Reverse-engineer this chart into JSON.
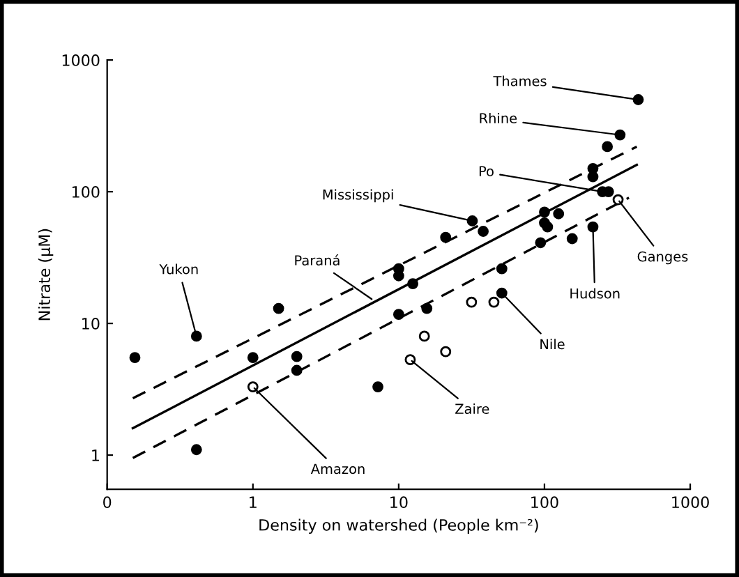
{
  "chart_data": {
    "type": "scatter",
    "xlabel": "Density on watershed (People km⁻²)",
    "ylabel": "Nitrate (μM)",
    "log": "xy",
    "xlim": [
      0.1,
      1000
    ],
    "ylim": [
      0.55,
      1000
    ],
    "xticks": [
      {
        "value": 0.1,
        "label": "0"
      },
      1,
      10,
      100,
      1000
    ],
    "yticks": [
      1,
      10,
      100,
      1000
    ],
    "grid": false,
    "legend": false,
    "marker": "circle",
    "series": [
      {
        "color": "#000000",
        "x": [
          0.155,
          0.41,
          0.41,
          1.5,
          1,
          2,
          2,
          7.2,
          10,
          10,
          12.5,
          21,
          32,
          38,
          10,
          15.6,
          51,
          51,
          94,
          440,
          330,
          270,
          215,
          215,
          250,
          275,
          215,
          155,
          100,
          100,
          105,
          125
        ],
        "values": [
          5.5,
          8,
          1.1,
          13,
          5.5,
          5.6,
          4.4,
          3.3,
          26,
          23,
          20,
          45,
          60,
          50,
          11.7,
          13,
          26,
          17,
          41,
          500,
          270,
          220,
          150,
          130,
          100,
          100,
          54,
          44,
          70,
          58,
          54,
          68
        ]
      },
      {
        "color": "#ffffff",
        "x": [
          1,
          31.6,
          45,
          15,
          21,
          12,
          320
        ],
        "values": [
          3.3,
          14.5,
          14.5,
          8,
          6.1,
          5.3,
          87
        ]
      },
      {
        "type": "line",
        "color": "#000000",
        "line_style": "solid",
        "marker": "none",
        "x": [
          0.15,
          430
        ],
        "values": [
          1.6,
          160
        ]
      },
      {
        "type": "line",
        "color": "#000000",
        "line_style": "dashed",
        "marker": "none",
        "x": [
          0.15,
          430
        ],
        "values": [
          2.7,
          220
        ]
      },
      {
        "type": "line",
        "color": "#000000",
        "line_style": "dashed",
        "marker": "none",
        "x": [
          0.15,
          380
        ],
        "values": [
          0.95,
          90
        ]
      }
    ],
    "annotations": [
      {
        "text": "Yukon",
        "x": 0.41,
        "y": 8
      },
      {
        "text": "Paraná",
        "x": 6.7,
        "y": 15
      },
      {
        "text": "Amazon",
        "x": 1,
        "y": 3.3
      },
      {
        "text": "Mississippi",
        "x": 32,
        "y": 60
      },
      {
        "text": "Zaire",
        "x": 12,
        "y": 5.3
      },
      {
        "text": "Nile",
        "x": 51,
        "y": 17
      },
      {
        "text": "Thames",
        "x": 440,
        "y": 500
      },
      {
        "text": "Rhine",
        "x": 330,
        "y": 270
      },
      {
        "text": "Po",
        "x": 250,
        "y": 100
      },
      {
        "text": "Ganges",
        "x": 320,
        "y": 87
      },
      {
        "text": "Hudson",
        "x": 215,
        "y": 54
      }
    ]
  }
}
